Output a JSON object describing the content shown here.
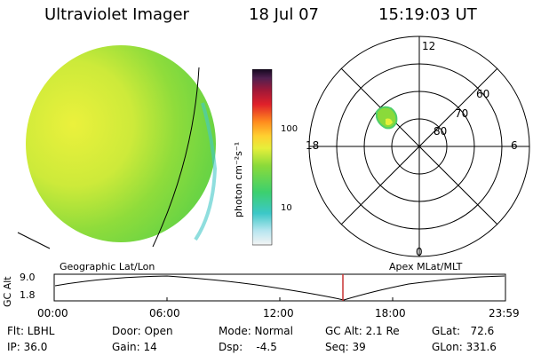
{
  "header": {
    "title": "Ultraviolet Imager",
    "date": "18 Jul 07",
    "time": "15:19:03 UT"
  },
  "colorbar": {
    "title": "photon cm⁻²s⁻¹",
    "ticks": [
      "100",
      "10"
    ]
  },
  "polar_plot": {
    "mlt_labels": [
      "12",
      "18",
      "6",
      "0"
    ],
    "lat_labels": [
      "60",
      "70",
      "80"
    ]
  },
  "orbit_panel": {
    "left_title": "Geographic Lat/Lon",
    "right_title": "Apex MLat/MLT",
    "yaxis_label": "GC Alt",
    "y_ticks": [
      "9.0",
      "1.8"
    ],
    "x_ticks": [
      "00:00",
      "06:00",
      "12:00",
      "18:00",
      "23:59"
    ]
  },
  "info": {
    "flt": "Flt: LBHL",
    "ip": "IP: 36.0",
    "door": "Door: Open",
    "gain": "Gain: 14",
    "mode": "Mode: Normal",
    "dsp": "Dsp:    -4.5",
    "gcalt": "GC Alt: 2.1 Re",
    "seq": "Seq: 39",
    "glat": "GLat:   72.6",
    "glon": "GLon: 331.6"
  },
  "colors": {
    "marker": "#c83232",
    "disk_green": "#7cd23a",
    "disk_yellow": "#e6f03a"
  }
}
